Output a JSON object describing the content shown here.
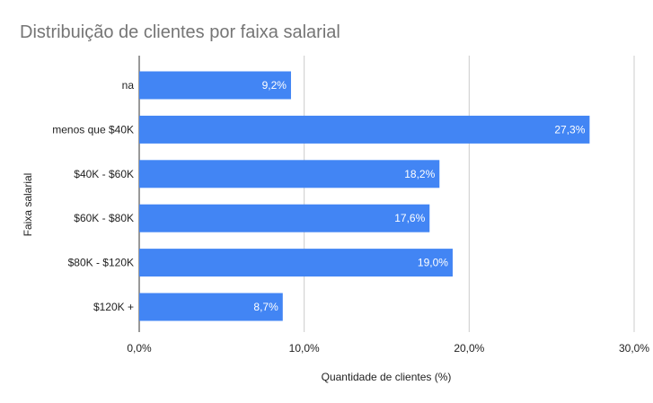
{
  "chart_data": {
    "type": "bar",
    "orientation": "horizontal",
    "title": "Distribuição de clientes por faixa salarial",
    "xlabel": "Quantidade de clientes (%)",
    "ylabel": "Faixa salarial",
    "categories": [
      "na",
      "menos que $40K",
      "$40K - $60K",
      "$60K - $80K",
      "$80K - $120K",
      "$120K +"
    ],
    "values": [
      9.2,
      27.3,
      18.2,
      17.6,
      19.0,
      8.7
    ],
    "data_labels": [
      "9,2%",
      "27,3%",
      "18,2%",
      "17,6%",
      "19,0%",
      "8,7%"
    ],
    "xlim": [
      0,
      30
    ],
    "ticks": [
      0,
      10,
      20,
      30
    ],
    "tick_labels": [
      "0,0%",
      "10,0%",
      "20,0%",
      "30,0%"
    ],
    "grid": true,
    "legend": "none",
    "bar_color": "#4285f4"
  }
}
